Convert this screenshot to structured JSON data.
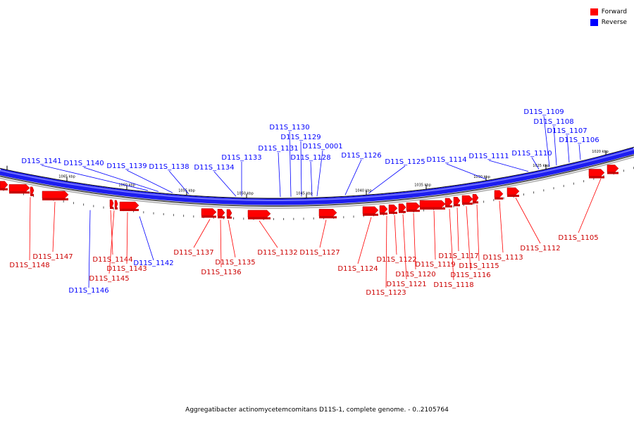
{
  "legend": {
    "forward_label": "Forward",
    "reverse_label": "Reverse",
    "forward_color": "#ff0000",
    "reverse_color": "#0000ff"
  },
  "caption": "Aggregatibacter actinomycetemcomitans D11S-1, complete genome. - 0..2105764",
  "scale_labels": [
    "1065 kbp",
    "1060 kbp",
    "1055 kbp",
    "1050 kbp",
    "1045 kbp",
    "1040 kbp",
    "1035 kbp",
    "1030 kbp",
    "1025 kbp",
    "1020 kbp"
  ],
  "reverse_genes": [
    "D11S_1109",
    "D11S_1108",
    "D11S_1107",
    "D11S_1106",
    "D11S_1130",
    "D11S_1129",
    "D11S_1131",
    "D11S_0001",
    "D11S_1128",
    "D11S_1133",
    "D11S_1126",
    "D11S_1110",
    "D11S_1111",
    "D11S_1114",
    "D11S_1125",
    "D11S_1141",
    "D11S_1140",
    "D11S_1139",
    "D11S_1138",
    "D11S_1134",
    "D11S_1142",
    "D11S_1146"
  ],
  "forward_genes": [
    "D11S_1147",
    "D11S_1148",
    "D11S_1137",
    "D11S_1144",
    "D11S_1143",
    "D11S_1145",
    "D11S_1135",
    "D11S_1136",
    "D11S_1132",
    "D11S_1127",
    "D11S_1124",
    "D11S_1122",
    "D11S_1123",
    "D11S_1121",
    "D11S_1120",
    "D11S_1119",
    "D11S_1118",
    "D11S_1117",
    "D11S_1116",
    "D11S_1115",
    "D11S_1113",
    "D11S_1112",
    "D11S_1105"
  ]
}
